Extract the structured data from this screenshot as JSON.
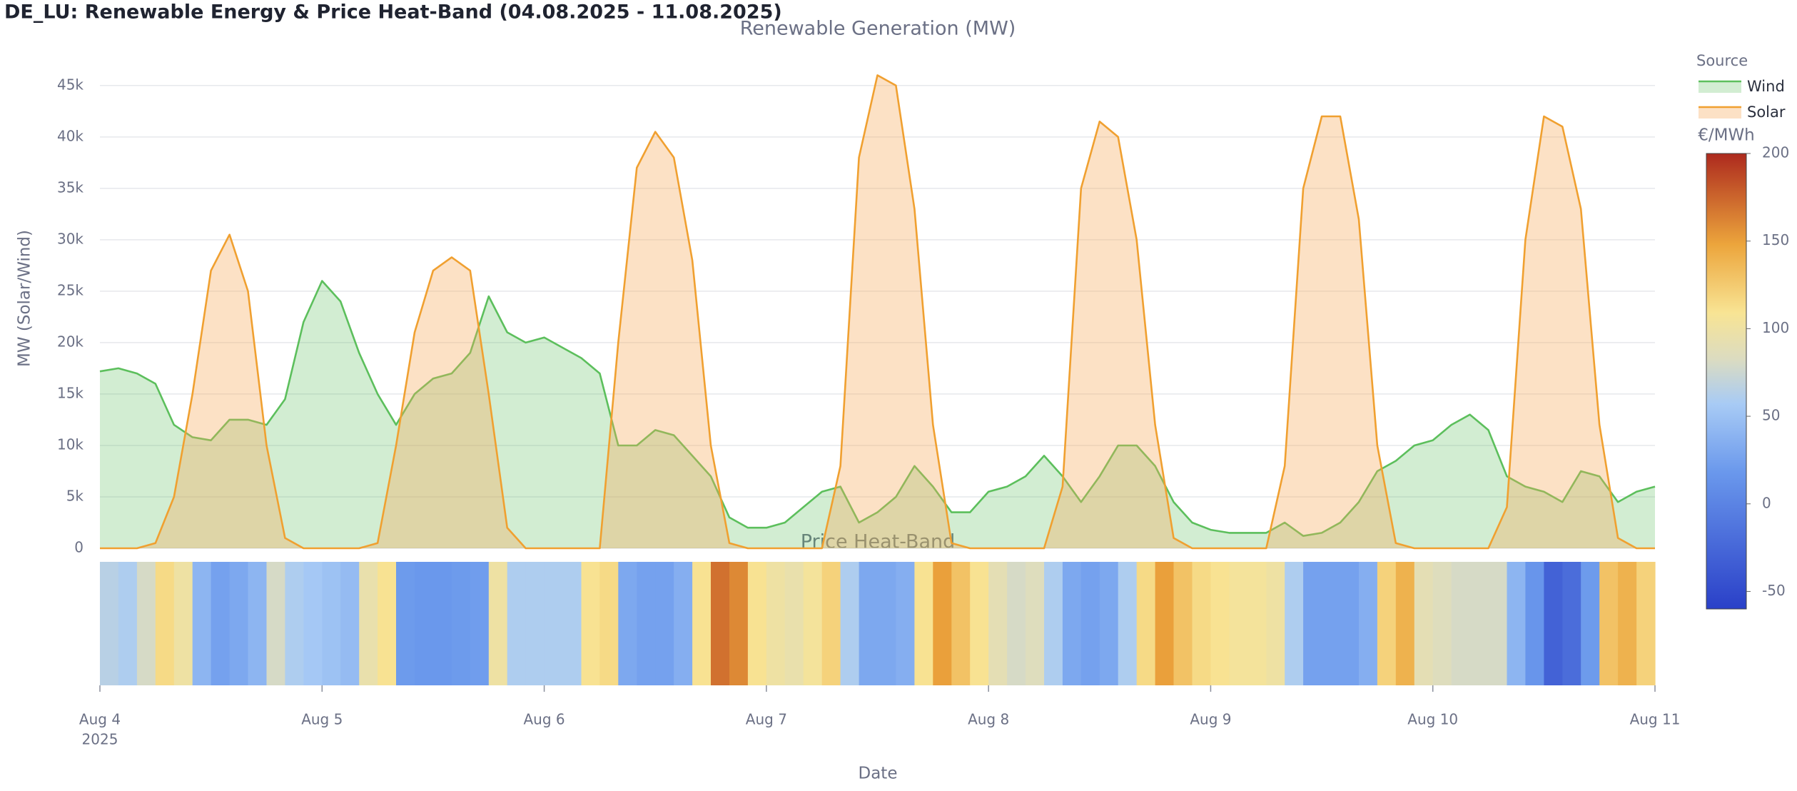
{
  "title": "DE_LU: Renewable Energy & Price Heat-Band (04.08.2025 - 11.08.2025)",
  "chart_data": [
    {
      "type": "area",
      "title": "Renewable Generation (MW)",
      "y_label": "MW (Solar/Wind)",
      "legend_title": "Source",
      "legend_position": "top-right",
      "grid": true,
      "xlim": [
        0,
        7
      ],
      "ylim": [
        0,
        47000
      ],
      "yticks": [
        0,
        {
          "value": 5000,
          "label": "5k"
        },
        {
          "value": 10000,
          "label": "10k"
        },
        {
          "value": 15000,
          "label": "15k"
        },
        {
          "value": 20000,
          "label": "20k"
        },
        {
          "value": 25000,
          "label": "25k"
        },
        {
          "value": 30000,
          "label": "30k"
        },
        {
          "value": 35000,
          "label": "35k"
        },
        {
          "value": 40000,
          "label": "40k"
        },
        {
          "value": 45000,
          "label": "45k"
        }
      ],
      "series": [
        {
          "name": "Wind",
          "color": "#5cbf5c",
          "fill": "rgba(92,191,92,0.28)",
          "values": [
            17200,
            17500,
            17000,
            16000,
            12000,
            10800,
            10500,
            12500,
            12500,
            12000,
            14500,
            22000,
            26000,
            24000,
            19000,
            15000,
            12000,
            15000,
            16500,
            17000,
            19000,
            24500,
            21000,
            20000,
            20500,
            19500,
            18500,
            17000,
            10000,
            10000,
            11500,
            11000,
            9000,
            7000,
            3000,
            2000,
            2000,
            2500,
            4000,
            5500,
            6000,
            2500,
            3500,
            5000,
            8000,
            6000,
            3500,
            3500,
            5500,
            6000,
            7000,
            9000,
            7000,
            4500,
            7000,
            10000,
            10000,
            8000,
            4500,
            2500,
            1800,
            1500,
            1500,
            1500,
            2500,
            1200,
            1500,
            2500,
            4500,
            7500,
            8500,
            10000,
            10500,
            12000,
            13000,
            11500,
            7000,
            6000,
            5500,
            4500,
            7500,
            7000,
            4500,
            5500,
            6000
          ]
        },
        {
          "name": "Solar",
          "color": "#f0a030",
          "fill": "rgba(245,170,90,0.35)",
          "values": [
            0,
            0,
            0,
            500,
            5000,
            15000,
            27000,
            30500,
            25000,
            10000,
            1000,
            0,
            0,
            0,
            0,
            500,
            10000,
            21000,
            27000,
            28300,
            27000,
            15000,
            2000,
            0,
            0,
            0,
            0,
            0,
            20000,
            37000,
            40500,
            38000,
            28000,
            10000,
            500,
            0,
            0,
            0,
            0,
            0,
            8000,
            38000,
            46000,
            45000,
            33000,
            12000,
            500,
            0,
            0,
            0,
            0,
            0,
            6000,
            35000,
            41500,
            40000,
            30000,
            12000,
            1000,
            0,
            0,
            0,
            0,
            0,
            8000,
            35000,
            42000,
            42000,
            32000,
            10000,
            500,
            0,
            0,
            0,
            0,
            0,
            4000,
            30000,
            42000,
            41000,
            33000,
            12000,
            1000,
            0,
            0
          ]
        }
      ]
    },
    {
      "type": "heatmap",
      "title": "Price Heat-Band",
      "x_label": "Date",
      "x_year_label": "2025",
      "xlim": [
        0,
        7
      ],
      "xticks": [
        {
          "value": 0,
          "label": "Aug 4"
        },
        {
          "value": 1,
          "label": "Aug 5"
        },
        {
          "value": 2,
          "label": "Aug 6"
        },
        {
          "value": 3,
          "label": "Aug 7"
        },
        {
          "value": 4,
          "label": "Aug 8"
        },
        {
          "value": 5,
          "label": "Aug 9"
        },
        {
          "value": 6,
          "label": "Aug 10"
        },
        {
          "value": 7,
          "label": "Aug 11"
        }
      ],
      "colorbar_title": "€/MWh",
      "zlim": [
        -60,
        200
      ],
      "zticks": [
        -50,
        0,
        50,
        100,
        150,
        200
      ],
      "colorscale": [
        [
          0,
          "#2a40c8"
        ],
        [
          0.3,
          "#6a98ec"
        ],
        [
          0.45,
          "#a8cbf5"
        ],
        [
          0.55,
          "#dcdcc0"
        ],
        [
          0.65,
          "#f8e494"
        ],
        [
          0.8,
          "#eca53c"
        ],
        [
          1,
          "#ad2a1e"
        ]
      ],
      "values": [
        65,
        60,
        80,
        115,
        100,
        40,
        25,
        30,
        40,
        80,
        60,
        55,
        50,
        45,
        95,
        110,
        20,
        18,
        18,
        20,
        22,
        100,
        60,
        60,
        60,
        60,
        110,
        115,
        30,
        25,
        25,
        35,
        110,
        170,
        160,
        110,
        100,
        95,
        105,
        120,
        60,
        30,
        30,
        35,
        110,
        150,
        130,
        110,
        90,
        80,
        85,
        60,
        30,
        25,
        30,
        60,
        115,
        150,
        130,
        115,
        110,
        105,
        105,
        100,
        60,
        25,
        25,
        25,
        35,
        120,
        140,
        90,
        85,
        80,
        80,
        80,
        40,
        15,
        -30,
        -20,
        20,
        130,
        140,
        120
      ]
    }
  ]
}
